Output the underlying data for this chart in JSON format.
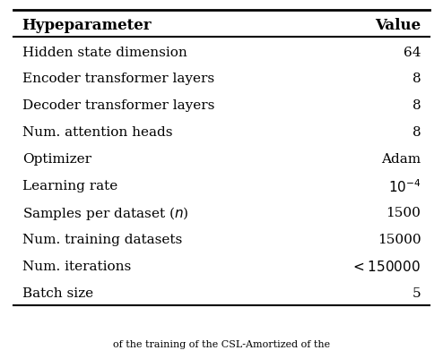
{
  "title_col1": "Hypeparameter",
  "title_col2": "Value",
  "rows": [
    [
      "Hidden state dimension",
      "64"
    ],
    [
      "Encoder transformer layers",
      "8"
    ],
    [
      "Decoder transformer layers",
      "8"
    ],
    [
      "Num. attention heads",
      "8"
    ],
    [
      "Optimizer",
      "Adam"
    ],
    [
      "Learning rate",
      "$10^{-4}$"
    ],
    [
      "Samples per dataset ($n$)",
      "1500"
    ],
    [
      "Num. training datasets",
      "15000"
    ],
    [
      "Num. iterations",
      "$< 150000$"
    ],
    [
      "Batch size",
      "5"
    ]
  ],
  "fig_width": 4.94,
  "fig_height": 4.02,
  "dpi": 100,
  "bg_color": "#ffffff",
  "header_fontsize": 12,
  "row_fontsize": 11,
  "caption_text": "of the training of the CSL-Amortized of the",
  "caption_fontsize": 8
}
